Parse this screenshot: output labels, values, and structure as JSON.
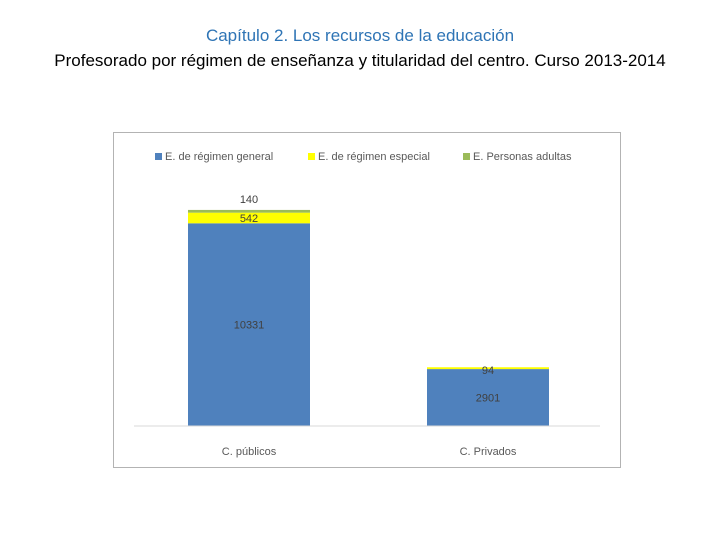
{
  "heading": {
    "line1": "Capítulo 2. Los recursos de la educación",
    "line2": "Profesorado por régimen de enseñanza y titularidad del centro. Curso 2013-2014"
  },
  "chart_data": {
    "type": "bar",
    "stacked": true,
    "categories": [
      "C. públicos",
      "C. Privados"
    ],
    "series": [
      {
        "name": "E. de régimen general",
        "values": [
          10331,
          2901
        ],
        "color": "#4f81bd"
      },
      {
        "name": "E. de régimen especial",
        "values": [
          542,
          94
        ],
        "color": "#ffff00"
      },
      {
        "name": "E. Personas adultas",
        "values": [
          140,
          null
        ],
        "color": "#9bbb59"
      }
    ],
    "data_labels": [
      [
        "10331",
        "2901"
      ],
      [
        "542",
        "94"
      ],
      [
        "140",
        ""
      ]
    ],
    "legend_position": "top",
    "grid": false,
    "y_axis_visible": false,
    "ylim": [
      0,
      13500
    ]
  }
}
